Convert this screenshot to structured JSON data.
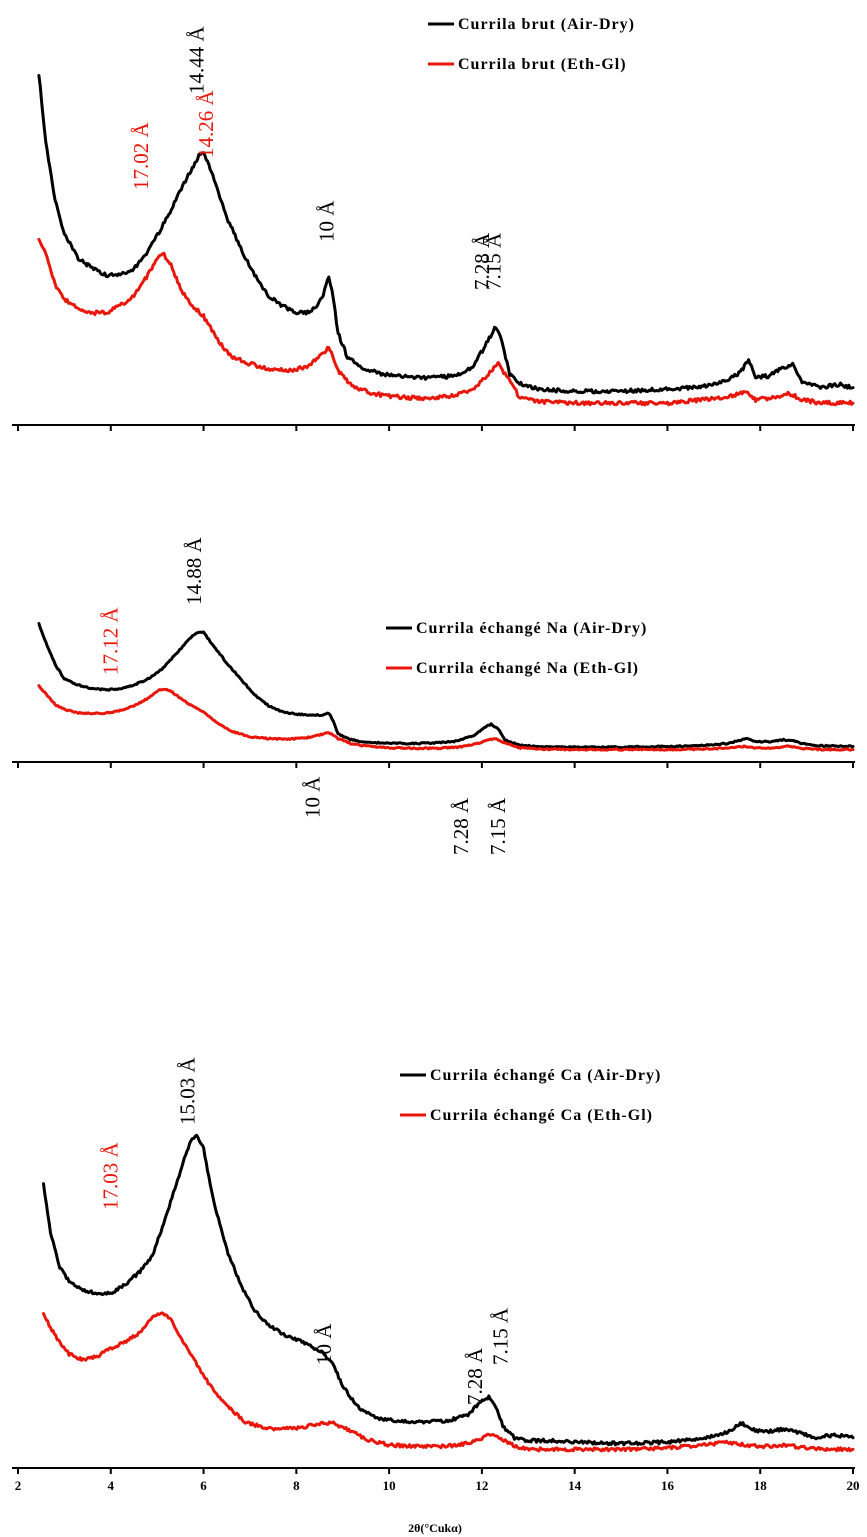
{
  "colors": {
    "air_dry": "#000000",
    "eth_gl": "#e8170c"
  },
  "chart_data": [
    {
      "type": "line",
      "panel": "top",
      "xlim": [
        2,
        20
      ],
      "xlabel": "",
      "ylabel": "",
      "grid": false,
      "legend_position": "top-right",
      "series": [
        {
          "name": "Currila brut (Air-Dry)",
          "color": "#000000",
          "x": [
            2.45,
            2.6,
            2.8,
            3.0,
            3.3,
            3.6,
            3.9,
            4.2,
            4.5,
            4.8,
            5.1,
            5.4,
            5.7,
            5.9,
            6.0,
            6.2,
            6.5,
            6.8,
            7.1,
            7.4,
            7.7,
            8.0,
            8.3,
            8.55,
            8.7,
            8.8,
            8.9,
            9.1,
            9.4,
            9.8,
            10.2,
            10.6,
            11.0,
            11.4,
            11.8,
            12.1,
            12.3,
            12.4,
            12.6,
            12.9,
            13.3,
            14.0,
            15.0,
            16.0,
            16.8,
            17.3,
            17.6,
            17.75,
            17.9,
            18.2,
            18.5,
            18.7,
            18.9,
            19.3,
            19.7,
            20.0
          ],
          "y": [
            100,
            80,
            63,
            53,
            46,
            43,
            41,
            41,
            43,
            48,
            55,
            63,
            71,
            76,
            77,
            70,
            58,
            49,
            41,
            35,
            32,
            30,
            30,
            34,
            41,
            34,
            24,
            17,
            14,
            12,
            11.5,
            11,
            11,
            11.5,
            14,
            21,
            26,
            23,
            12,
            8.5,
            7.5,
            7,
            7,
            7.5,
            8.5,
            10,
            13,
            16,
            11,
            11.5,
            14,
            15,
            10,
            8,
            9,
            8
          ]
        },
        {
          "name": "Currila brut (Eth-Gl)",
          "color": "#e8170c",
          "x": [
            2.45,
            2.6,
            2.8,
            3.0,
            3.3,
            3.6,
            3.9,
            4.2,
            4.5,
            4.8,
            5.0,
            5.15,
            5.3,
            5.5,
            5.7,
            6.0,
            6.3,
            6.6,
            7.0,
            7.4,
            7.8,
            8.2,
            8.5,
            8.7,
            8.9,
            9.2,
            9.6,
            10.0,
            10.5,
            11.0,
            11.5,
            11.9,
            12.2,
            12.35,
            12.5,
            12.8,
            13.2,
            14.0,
            15.0,
            16.0,
            16.8,
            17.4,
            17.7,
            17.9,
            18.3,
            18.6,
            18.9,
            19.3,
            20.0
          ],
          "y": [
            52,
            47,
            38,
            34,
            31,
            30,
            30,
            32,
            35,
            41,
            46,
            47,
            44,
            37,
            33,
            29,
            22,
            17,
            15,
            13.5,
            13,
            14,
            17,
            20,
            13,
            8.5,
            6.5,
            5.5,
            5,
            5,
            6,
            8.5,
            13,
            15,
            12,
            5.5,
            4,
            3.5,
            3.5,
            3.5,
            4.5,
            5.5,
            7,
            4.5,
            5,
            6.5,
            4.5,
            3.5,
            3.5
          ]
        }
      ],
      "peak_labels": [
        {
          "text": "14.44 Å",
          "color": "#000000",
          "x": 6.0
        },
        {
          "text": "17.02 Å",
          "color": "#e8170c",
          "x": 4.8
        },
        {
          "text": "14.26 Å",
          "color": "#e8170c",
          "x": 6.2
        },
        {
          "text": "10 Å",
          "color": "#000000",
          "x": 8.8
        },
        {
          "text": "7.28 Å",
          "color": "#000000",
          "x": 12.15
        },
        {
          "text": "7.15 Å",
          "color": "#000000",
          "x": 12.4
        }
      ]
    },
    {
      "type": "line",
      "panel": "middle",
      "xlim": [
        2,
        20
      ],
      "xlabel": "",
      "ylabel": "",
      "grid": false,
      "legend_position": "top-right",
      "series": [
        {
          "name": "Currila échangé Na (Air-Dry)",
          "color": "#000000",
          "x": [
            2.45,
            2.6,
            2.8,
            3.0,
            3.3,
            3.6,
            3.9,
            4.2,
            4.5,
            4.8,
            5.1,
            5.4,
            5.7,
            5.85,
            6.0,
            6.2,
            6.5,
            6.8,
            7.1,
            7.4,
            7.7,
            8.0,
            8.3,
            8.6,
            8.7,
            8.8,
            8.9,
            9.1,
            9.4,
            9.8,
            10.2,
            10.6,
            11.0,
            11.4,
            11.8,
            12.05,
            12.2,
            12.35,
            12.5,
            12.8,
            13.2,
            14.0,
            15.0,
            16.0,
            16.8,
            17.3,
            17.6,
            17.75,
            17.9,
            18.2,
            18.5,
            18.7,
            18.9,
            19.3,
            19.7,
            20.0
          ],
          "y": [
            105,
            90,
            72,
            60,
            55,
            52,
            51,
            52,
            55,
            60,
            68,
            80,
            93,
            98,
            98,
            88,
            73,
            60,
            47,
            38,
            33,
            31,
            30.5,
            30.5,
            32,
            25,
            15,
            11,
            8.5,
            7.5,
            7,
            7,
            7.5,
            8.5,
            13,
            20,
            23,
            19,
            10,
            5.5,
            4.5,
            4,
            4,
            4.5,
            5.5,
            7,
            10,
            11,
            8.5,
            8.5,
            10,
            9.5,
            7,
            5,
            5,
            4.5
          ]
        },
        {
          "name": "Currila échangé Na (Eth-Gl)",
          "color": "#e8170c",
          "x": [
            2.45,
            2.6,
            2.8,
            3.0,
            3.3,
            3.6,
            3.9,
            4.2,
            4.5,
            4.8,
            5.0,
            5.15,
            5.3,
            5.5,
            5.7,
            6.0,
            6.3,
            6.6,
            7.0,
            7.4,
            7.8,
            8.2,
            8.5,
            8.7,
            8.9,
            9.2,
            9.6,
            10.0,
            10.5,
            11.0,
            11.5,
            11.9,
            12.15,
            12.3,
            12.45,
            12.8,
            13.2,
            14.0,
            15.0,
            16.0,
            16.8,
            17.4,
            17.65,
            17.9,
            18.3,
            18.6,
            18.9,
            19.3,
            20.0
          ],
          "y": [
            54,
            48,
            39,
            35,
            32,
            31.5,
            32,
            34,
            38,
            44,
            50,
            52,
            50,
            44,
            39,
            33,
            24,
            17,
            12.5,
            11,
            10.5,
            11.5,
            14,
            16,
            11,
            6.5,
            4.5,
            3.5,
            3,
            3,
            4,
            7,
            10,
            11,
            8,
            3.5,
            2.5,
            2,
            2,
            2,
            2.5,
            3.5,
            4.5,
            3,
            3.5,
            5,
            3,
            2,
            2
          ]
        }
      ],
      "peak_labels": [
        {
          "text": "14.88 Å",
          "color": "#000000",
          "x": 5.95
        },
        {
          "text": "17.12 Å",
          "color": "#e8170c",
          "x": 4.15
        },
        {
          "text": "10 Å",
          "color": "#000000",
          "x": 8.5
        },
        {
          "text": "7.28 Å",
          "color": "#000000",
          "x": 11.7
        },
        {
          "text": "7.15 Å",
          "color": "#000000",
          "x": 12.5
        }
      ]
    },
    {
      "type": "line",
      "panel": "bottom",
      "xlim": [
        2,
        20
      ],
      "xticks": [
        2,
        4,
        6,
        8,
        10,
        12,
        14,
        16,
        18,
        20
      ],
      "xlabel": "2θ(°Cukα)",
      "ylabel": "",
      "grid": false,
      "legend_position": "top-right",
      "series": [
        {
          "name": "Currila échangé Ca (Air-Dry)",
          "color": "#000000",
          "x": [
            2.55,
            2.7,
            2.9,
            3.1,
            3.4,
            3.7,
            4.0,
            4.3,
            4.6,
            4.9,
            5.2,
            5.5,
            5.7,
            5.85,
            6.0,
            6.2,
            6.5,
            6.8,
            7.1,
            7.4,
            7.7,
            8.0,
            8.3,
            8.6,
            8.8,
            9.0,
            9.3,
            9.7,
            10.1,
            10.5,
            10.9,
            11.3,
            11.7,
            11.95,
            12.15,
            12.3,
            12.45,
            12.7,
            13.0,
            13.5,
            14.0,
            15.0,
            16.0,
            16.8,
            17.3,
            17.6,
            17.8,
            18.1,
            18.5,
            18.8,
            19.2,
            19.6,
            20.0
          ],
          "y": [
            95,
            78,
            66,
            61,
            58,
            57,
            57,
            60,
            64,
            70,
            84,
            99,
            109,
            112,
            107,
            90,
            72,
            60,
            51,
            46,
            43,
            41,
            39,
            36,
            32,
            25,
            18,
            14,
            13,
            12.5,
            12.5,
            13,
            15,
            19,
            21,
            18,
            11,
            7,
            6,
            6,
            5.5,
            5,
            5.5,
            7,
            9,
            12,
            10,
            9,
            10,
            9,
            7,
            8,
            7
          ]
        },
        {
          "name": "Currila échangé Ca (Eth-Gl)",
          "color": "#e8170c",
          "x": [
            2.55,
            2.7,
            2.9,
            3.1,
            3.4,
            3.7,
            4.0,
            4.3,
            4.6,
            4.9,
            5.1,
            5.3,
            5.5,
            5.8,
            6.1,
            6.5,
            6.9,
            7.3,
            7.7,
            8.1,
            8.5,
            8.8,
            9.1,
            9.5,
            10.0,
            10.5,
            11.0,
            11.5,
            11.9,
            12.15,
            12.3,
            12.5,
            12.8,
            13.2,
            14.0,
            15.0,
            16.0,
            16.8,
            17.3,
            17.7,
            18.1,
            18.5,
            19.0,
            19.5,
            20.0
          ],
          "y": [
            50,
            45,
            40,
            36,
            34,
            35,
            38,
            40,
            43,
            49,
            50,
            48,
            42,
            34,
            26,
            18,
            12.5,
            10.5,
            10,
            10.5,
            12,
            12,
            10,
            6.5,
            4.5,
            4,
            4,
            4.5,
            6,
            8,
            8,
            6,
            3.5,
            3,
            3,
            3,
            3.5,
            4.5,
            5.5,
            4.5,
            4,
            4.5,
            3.5,
            3,
            3
          ]
        }
      ],
      "peak_labels": [
        {
          "text": "15.03 Å",
          "color": "#000000",
          "x": 5.8
        },
        {
          "text": "17.03 Å",
          "color": "#e8170c",
          "x": 4.15
        },
        {
          "text": "10 Å",
          "color": "#000000",
          "x": 8.75
        },
        {
          "text": "7.28 Å",
          "color": "#000000",
          "x": 12.0
        },
        {
          "text": "7.15 Å",
          "color": "#000000",
          "x": 12.55
        }
      ]
    }
  ]
}
